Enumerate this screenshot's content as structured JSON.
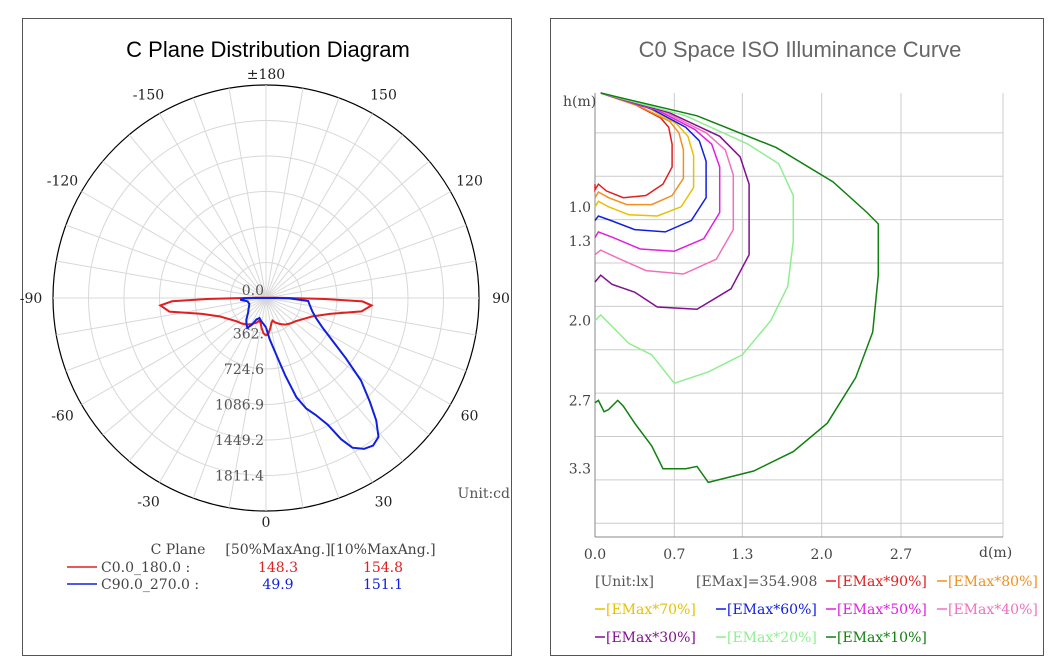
{
  "chart_data": [
    {
      "type": "polar",
      "title": "C Plane Distribution Diagram",
      "angle_labels": [
        {
          "angle": 180,
          "text": "±180"
        },
        {
          "angle": 150,
          "text": "150"
        },
        {
          "angle": -150,
          "text": "-150"
        },
        {
          "angle": 120,
          "text": "120"
        },
        {
          "angle": -120,
          "text": "-120"
        },
        {
          "angle": 90,
          "text": "90"
        },
        {
          "angle": -90,
          "text": "-90"
        },
        {
          "angle": 60,
          "text": "60"
        },
        {
          "angle": -60,
          "text": "-60"
        },
        {
          "angle": 30,
          "text": "30"
        },
        {
          "angle": -30,
          "text": "-30"
        },
        {
          "angle": 0,
          "text": "0"
        }
      ],
      "radial_labels": [
        "0.0",
        "362.",
        "724.6",
        "1086.9",
        "1449.2",
        "1811.4"
      ],
      "rmax": 1811.4,
      "unit": "Unit:cd",
      "legend_header": [
        "C Plane",
        "[50%MaxAng.]",
        "[10%MaxAng.]"
      ],
      "series": [
        {
          "name": "C0.0_180.0",
          "max50": "148.3",
          "max10": "154.8",
          "color": "#e02020",
          "points": [
            [
              0,
              320
            ],
            [
              4,
              300
            ],
            [
              8,
              260
            ],
            [
              12,
              220
            ],
            [
              16,
              200
            ],
            [
              20,
              220
            ],
            [
              28,
              250
            ],
            [
              36,
              280
            ],
            [
              44,
              300
            ],
            [
              52,
              320
            ],
            [
              60,
              360
            ],
            [
              68,
              420
            ],
            [
              76,
              560
            ],
            [
              82,
              820
            ],
            [
              86,
              900
            ],
            [
              88,
              820
            ],
            [
              89,
              500
            ],
            [
              90,
              200
            ],
            [
              92,
              80
            ],
            [
              -92,
              80
            ],
            [
              -90,
              200
            ],
            [
              -89,
              500
            ],
            [
              -88,
              800
            ],
            [
              -86,
              900
            ],
            [
              -82,
              830
            ],
            [
              -76,
              560
            ],
            [
              -68,
              420
            ],
            [
              -60,
              360
            ],
            [
              -52,
              320
            ],
            [
              -44,
              300
            ],
            [
              -36,
              280
            ],
            [
              -28,
              250
            ],
            [
              -20,
              220
            ],
            [
              -16,
              200
            ],
            [
              -12,
              220
            ],
            [
              -8,
              260
            ],
            [
              -4,
              300
            ],
            [
              0,
              320
            ]
          ]
        },
        {
          "name": "C90.0_270.0",
          "max50": "49.9",
          "max10": "151.1",
          "color": "#1020e0",
          "points": [
            [
              0,
              250
            ],
            [
              3,
              300
            ],
            [
              5,
              350
            ],
            [
              8,
              420
            ],
            [
              10,
              480
            ],
            [
              14,
              680
            ],
            [
              17,
              880
            ],
            [
              20,
              1000
            ],
            [
              23,
              1080
            ],
            [
              26,
              1200
            ],
            [
              28,
              1360
            ],
            [
              30,
              1470
            ],
            [
              33,
              1530
            ],
            [
              36,
              1550
            ],
            [
              39,
              1520
            ],
            [
              42,
              1400
            ],
            [
              45,
              1250
            ],
            [
              49,
              1070
            ],
            [
              53,
              850
            ],
            [
              57,
              680
            ],
            [
              62,
              550
            ],
            [
              68,
              460
            ],
            [
              74,
              410
            ],
            [
              80,
              380
            ],
            [
              86,
              360
            ],
            [
              89,
              200
            ],
            [
              90,
              80
            ],
            [
              -90,
              80
            ],
            [
              -89,
              180
            ],
            [
              -86,
              220
            ],
            [
              -80,
              160
            ],
            [
              -70,
              150
            ],
            [
              -60,
              170
            ],
            [
              -50,
              200
            ],
            [
              -42,
              250
            ],
            [
              -36,
              280
            ],
            [
              -32,
              300
            ],
            [
              -28,
              260
            ],
            [
              -24,
              200
            ],
            [
              -18,
              180
            ],
            [
              -12,
              200
            ],
            [
              -6,
              220
            ],
            [
              0,
              250
            ]
          ]
        }
      ]
    },
    {
      "type": "line",
      "title": "C0 Space ISO Illuminance Curve",
      "ylabel": "h(m)",
      "xlabel": "d(m)",
      "xlim": [
        0,
        3.6
      ],
      "ylim": [
        0,
        3.9
      ],
      "xticks": [
        "0.0",
        "0.7",
        "1.3",
        "2.0",
        "2.7"
      ],
      "x_tick_values": [
        0,
        0.7,
        1.3,
        2.0,
        2.7
      ],
      "yticks": [
        "1.0",
        "1.3",
        "2.0",
        "2.7",
        "3.3"
      ],
      "y_tick_values": [
        1.0,
        1.3,
        2.0,
        2.7,
        3.3
      ],
      "unit": "[Unit:lx]",
      "emax": "[EMax]=354.908",
      "series": [
        {
          "name": "[EMax*90%]",
          "color": "#e02020",
          "points": [
            [
              0.05,
              0
            ],
            [
              0.35,
              0.1
            ],
            [
              0.58,
              0.22
            ],
            [
              0.65,
              0.3
            ],
            [
              0.68,
              0.45
            ],
            [
              0.68,
              0.65
            ],
            [
              0.6,
              0.8
            ],
            [
              0.45,
              0.9
            ],
            [
              0.25,
              0.92
            ],
            [
              0.1,
              0.86
            ],
            [
              0.03,
              0.8
            ],
            [
              0.0,
              0.85
            ],
            [
              0.0,
              0.8
            ]
          ]
        },
        {
          "name": "[EMax*80%]",
          "color": "#f09020",
          "points": [
            [
              0.05,
              0
            ],
            [
              0.4,
              0.12
            ],
            [
              0.66,
              0.25
            ],
            [
              0.74,
              0.35
            ],
            [
              0.78,
              0.5
            ],
            [
              0.78,
              0.75
            ],
            [
              0.68,
              0.9
            ],
            [
              0.5,
              0.98
            ],
            [
              0.28,
              0.98
            ],
            [
              0.12,
              0.92
            ],
            [
              0.03,
              0.87
            ],
            [
              0.0,
              0.92
            ]
          ]
        },
        {
          "name": "[EMax*70%]",
          "color": "#e8c000",
          "points": [
            [
              0.05,
              0
            ],
            [
              0.45,
              0.12
            ],
            [
              0.72,
              0.27
            ],
            [
              0.82,
              0.38
            ],
            [
              0.87,
              0.55
            ],
            [
              0.87,
              0.83
            ],
            [
              0.76,
              1.0
            ],
            [
              0.55,
              1.08
            ],
            [
              0.3,
              1.07
            ],
            [
              0.12,
              1.0
            ],
            [
              0.03,
              0.95
            ],
            [
              0.0,
              1.0
            ]
          ]
        },
        {
          "name": "[EMax*60%]",
          "color": "#1020e0",
          "points": [
            [
              0.05,
              0
            ],
            [
              0.5,
              0.14
            ],
            [
              0.8,
              0.3
            ],
            [
              0.92,
              0.42
            ],
            [
              0.98,
              0.6
            ],
            [
              0.98,
              0.92
            ],
            [
              0.85,
              1.12
            ],
            [
              0.62,
              1.22
            ],
            [
              0.35,
              1.2
            ],
            [
              0.14,
              1.12
            ],
            [
              0.03,
              1.08
            ],
            [
              0.0,
              1.12
            ]
          ]
        },
        {
          "name": "[EMax*50%]",
          "color": "#e020e0",
          "points": [
            [
              0.05,
              0
            ],
            [
              0.55,
              0.15
            ],
            [
              0.88,
              0.32
            ],
            [
              1.03,
              0.45
            ],
            [
              1.1,
              0.65
            ],
            [
              1.1,
              1.05
            ],
            [
              0.96,
              1.28
            ],
            [
              0.7,
              1.39
            ],
            [
              0.4,
              1.37
            ],
            [
              0.16,
              1.27
            ],
            [
              0.03,
              1.22
            ],
            [
              0.0,
              1.27
            ]
          ]
        },
        {
          "name": "[EMax*40%]",
          "color": "#f070c0",
          "points": [
            [
              0.05,
              0
            ],
            [
              0.6,
              0.16
            ],
            [
              0.98,
              0.35
            ],
            [
              1.15,
              0.5
            ],
            [
              1.22,
              0.72
            ],
            [
              1.22,
              1.2
            ],
            [
              1.07,
              1.46
            ],
            [
              0.78,
              1.59
            ],
            [
              0.45,
              1.56
            ],
            [
              0.2,
              1.45
            ],
            [
              0.05,
              1.38
            ],
            [
              0.0,
              1.42
            ]
          ]
        },
        {
          "name": "[EMax*30%]",
          "color": "#801090",
          "points": [
            [
              0.05,
              0
            ],
            [
              0.65,
              0.17
            ],
            [
              1.1,
              0.38
            ],
            [
              1.28,
              0.56
            ],
            [
              1.36,
              0.8
            ],
            [
              1.36,
              1.42
            ],
            [
              1.2,
              1.72
            ],
            [
              0.9,
              1.9
            ],
            [
              0.55,
              1.88
            ],
            [
              0.35,
              1.75
            ],
            [
              0.15,
              1.68
            ],
            [
              0.05,
              1.6
            ],
            [
              0.0,
              1.66
            ]
          ]
        },
        {
          "name": "[EMax*20%]",
          "color": "#90ee90",
          "points": [
            [
              0.05,
              0
            ],
            [
              0.8,
              0.2
            ],
            [
              1.35,
              0.45
            ],
            [
              1.62,
              0.62
            ],
            [
              1.75,
              0.9
            ],
            [
              1.75,
              1.3
            ],
            [
              1.7,
              1.7
            ],
            [
              1.55,
              2.0
            ],
            [
              1.3,
              2.3
            ],
            [
              1.0,
              2.45
            ],
            [
              0.7,
              2.55
            ],
            [
              0.5,
              2.3
            ],
            [
              0.3,
              2.2
            ],
            [
              0.15,
              2.05
            ],
            [
              0.05,
              1.95
            ],
            [
              0.0,
              2.0
            ]
          ]
        },
        {
          "name": "[EMax*10%]",
          "color": "#108010",
          "points": [
            [
              0.05,
              0
            ],
            [
              0.9,
              0.2
            ],
            [
              1.6,
              0.48
            ],
            [
              2.1,
              0.78
            ],
            [
              2.4,
              1.05
            ],
            [
              2.5,
              1.15
            ],
            [
              2.5,
              1.6
            ],
            [
              2.45,
              2.1
            ],
            [
              2.3,
              2.5
            ],
            [
              2.05,
              2.9
            ],
            [
              1.75,
              3.15
            ],
            [
              1.4,
              3.32
            ],
            [
              1.0,
              3.42
            ],
            [
              0.9,
              3.28
            ],
            [
              0.8,
              3.3
            ],
            [
              0.6,
              3.3
            ],
            [
              0.5,
              3.1
            ],
            [
              0.35,
              2.9
            ],
            [
              0.25,
              2.75
            ],
            [
              0.2,
              2.7
            ],
            [
              0.12,
              2.78
            ],
            [
              0.08,
              2.8
            ],
            [
              0.03,
              2.7
            ],
            [
              0.0,
              2.72
            ]
          ]
        }
      ]
    }
  ]
}
